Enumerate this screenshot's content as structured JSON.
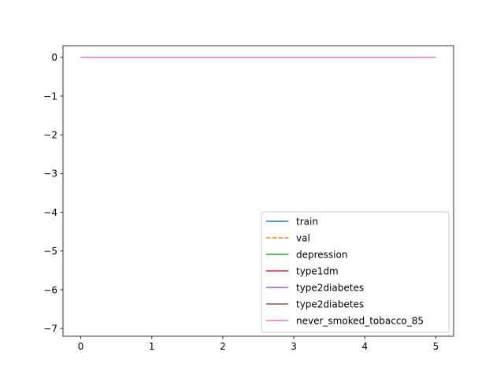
{
  "chart_data": {
    "type": "line",
    "title": "",
    "xlabel": "",
    "ylabel": "",
    "xlim": [
      -0.25,
      5.25
    ],
    "ylim": [
      -7.2,
      0.3
    ],
    "xticks": [
      0,
      1,
      2,
      3,
      4,
      5
    ],
    "yticks": [
      0,
      -1,
      -2,
      -3,
      -4,
      -5,
      -6,
      -7
    ],
    "xtick_labels": [
      "0",
      "1",
      "2",
      "3",
      "4",
      "5"
    ],
    "ytick_labels": [
      "0",
      "−1",
      "−2",
      "−3",
      "−4",
      "−5",
      "−6",
      "−7"
    ],
    "grid": false,
    "legend_position": "lower right",
    "series": [
      {
        "name": "train",
        "color": "#1f77b4",
        "dash": "solid",
        "x": [
          0,
          1,
          2,
          3,
          4,
          5
        ],
        "values": [
          0,
          0,
          0,
          0,
          0,
          0
        ]
      },
      {
        "name": "val",
        "color": "#ff7f0e",
        "dash": "dashed",
        "x": [
          0,
          1,
          2,
          3,
          4,
          5
        ],
        "values": [
          0,
          0,
          0,
          0,
          0,
          0
        ]
      },
      {
        "name": "depression",
        "color": "#2ca02c",
        "dash": "solid",
        "x": [
          0,
          1,
          2,
          3,
          4,
          5
        ],
        "values": [
          0,
          0,
          0,
          0,
          0,
          0
        ]
      },
      {
        "name": "type1dm",
        "color": "#d62728",
        "dash": "solid",
        "x": [
          0,
          1,
          2,
          3,
          4,
          5
        ],
        "values": [
          0,
          0,
          0,
          0,
          0,
          0
        ]
      },
      {
        "name": "type2diabetes",
        "color": "#9467bd",
        "dash": "solid",
        "x": [
          0,
          1,
          2,
          3,
          4,
          5
        ],
        "values": [
          0,
          0,
          0,
          0,
          0,
          0
        ]
      },
      {
        "name": "type2diabetes",
        "color": "#8c564b",
        "dash": "solid",
        "x": [
          0,
          1,
          2,
          3,
          4,
          5
        ],
        "values": [
          0,
          0,
          0,
          0,
          0,
          0
        ]
      },
      {
        "name": "never_smoked_tobacco_85",
        "color": "#e377c2",
        "dash": "solid",
        "x": [
          0,
          1,
          2,
          3,
          4,
          5
        ],
        "values": [
          0,
          0,
          0,
          0,
          0,
          0
        ]
      }
    ]
  }
}
